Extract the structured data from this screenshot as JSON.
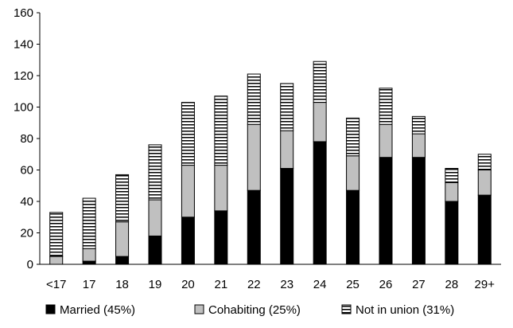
{
  "chart_data": {
    "type": "bar",
    "stacked": true,
    "title": "",
    "xlabel": "",
    "ylabel": "",
    "ylim": [
      0,
      160
    ],
    "yticks": [
      0,
      20,
      40,
      60,
      80,
      100,
      120,
      140,
      160
    ],
    "grid": false,
    "legend_position": "bottom",
    "categories": [
      "<17",
      "17",
      "18",
      "19",
      "20",
      "21",
      "22",
      "23",
      "24",
      "25",
      "26",
      "27",
      "28",
      "29+"
    ],
    "series": [
      {
        "name": "Married (45%)",
        "fill": "solid",
        "color": "#000000",
        "values": [
          0,
          2,
          5,
          18,
          30,
          34,
          47,
          61,
          78,
          47,
          68,
          68,
          40,
          44
        ]
      },
      {
        "name": "Cohabiting (25%)",
        "fill": "solid",
        "color": "#c0c0c0",
        "values": [
          5,
          8,
          22,
          23,
          33,
          29,
          42,
          24,
          25,
          22,
          21,
          15,
          12,
          16
        ]
      },
      {
        "name": "Not in union (31%)",
        "fill": "horizontal-stripes",
        "color": "#000000",
        "values": [
          28,
          32,
          30,
          35,
          40,
          44,
          32,
          30,
          26,
          24,
          23,
          11,
          9,
          10
        ]
      }
    ]
  }
}
